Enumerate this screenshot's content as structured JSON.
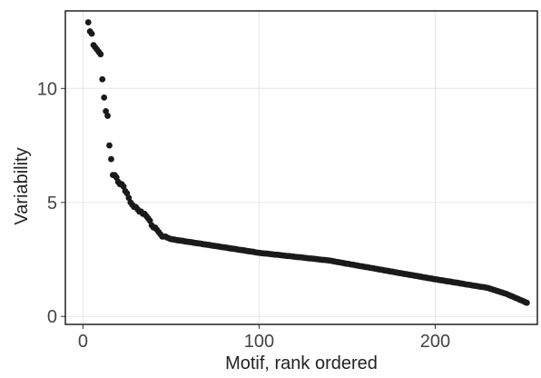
{
  "chart_data": {
    "type": "scatter",
    "xlabel": "Motif, rank ordered",
    "ylabel": "Variability",
    "xlim": [
      -10,
      258
    ],
    "ylim": [
      -0.35,
      13.4
    ],
    "xticks": [
      0,
      100,
      200
    ],
    "yticks": [
      0,
      5,
      10
    ],
    "grid": true,
    "color": "#1a1a1a",
    "x": [
      3,
      4,
      5,
      6,
      7,
      8,
      9,
      10,
      11,
      12,
      13,
      14,
      15,
      16,
      17,
      18,
      19,
      20,
      21,
      22,
      23,
      24,
      25,
      26,
      27,
      28,
      29,
      30,
      31,
      32,
      33,
      34,
      35,
      36,
      37,
      38,
      39,
      40,
      41,
      42,
      43,
      44,
      45,
      46,
      47,
      48,
      49,
      50,
      51,
      52,
      53,
      54,
      55,
      56,
      57,
      58,
      59,
      60,
      61,
      62,
      63,
      64,
      65,
      66,
      67,
      68,
      69,
      70,
      71,
      72,
      73,
      74,
      75,
      76,
      77,
      78,
      79,
      80,
      81,
      82,
      83,
      84,
      85,
      86,
      87,
      88,
      89,
      90,
      91,
      92,
      93,
      94,
      95,
      96,
      97,
      98,
      99,
      100,
      101,
      102,
      103,
      104,
      105,
      106,
      107,
      108,
      109,
      110,
      111,
      112,
      113,
      114,
      115,
      116,
      117,
      118,
      119,
      120,
      121,
      122,
      123,
      124,
      125,
      126,
      127,
      128,
      129,
      130,
      131,
      132,
      133,
      134,
      135,
      136,
      137,
      138,
      139,
      140,
      141,
      142,
      143,
      144,
      145,
      146,
      147,
      148,
      149,
      150,
      151,
      152,
      153,
      154,
      155,
      156,
      157,
      158,
      159,
      160,
      161,
      162,
      163,
      164,
      165,
      166,
      167,
      168,
      169,
      170,
      171,
      172,
      173,
      174,
      175,
      176,
      177,
      178,
      179,
      180,
      181,
      182,
      183,
      184,
      185,
      186,
      187,
      188,
      189,
      190,
      191,
      192,
      193,
      194,
      195,
      196,
      197,
      198,
      199,
      200,
      201,
      202,
      203,
      204,
      205,
      206,
      207,
      208,
      209,
      210,
      211,
      212,
      213,
      214,
      215,
      216,
      217,
      218,
      219,
      220,
      221,
      222,
      223,
      224,
      225,
      226,
      227,
      228,
      229,
      230,
      231,
      232,
      233,
      234,
      235,
      236,
      237,
      238,
      239,
      240,
      241,
      242,
      243,
      244,
      245,
      246,
      247,
      248,
      249,
      250,
      251,
      252
    ],
    "values": [
      12.9,
      12.5,
      12.4,
      11.9,
      11.8,
      11.7,
      11.6,
      11.5,
      10.4,
      9.6,
      9.0,
      8.8,
      7.5,
      6.9,
      6.2,
      6.2,
      6.1,
      5.9,
      5.8,
      5.8,
      5.7,
      5.5,
      5.4,
      5.2,
      5.0,
      4.9,
      4.8,
      4.8,
      4.7,
      4.6,
      4.6,
      4.5,
      4.5,
      4.4,
      4.3,
      4.2,
      4.0,
      3.9,
      3.9,
      3.8,
      3.7,
      3.6,
      3.5,
      3.5,
      3.5,
      3.45,
      3.42,
      3.39,
      3.38,
      3.37,
      3.35,
      3.34,
      3.33,
      3.32,
      3.31,
      3.29,
      3.28,
      3.27,
      3.26,
      3.25,
      3.23,
      3.22,
      3.21,
      3.2,
      3.19,
      3.17,
      3.16,
      3.15,
      3.14,
      3.13,
      3.11,
      3.1,
      3.09,
      3.08,
      3.07,
      3.05,
      3.04,
      3.03,
      3.02,
      3.01,
      2.99,
      2.98,
      2.97,
      2.96,
      2.95,
      2.93,
      2.92,
      2.91,
      2.9,
      2.89,
      2.87,
      2.86,
      2.85,
      2.84,
      2.83,
      2.81,
      2.8,
      2.79,
      2.78,
      2.77,
      2.76,
      2.76,
      2.75,
      2.74,
      2.73,
      2.72,
      2.71,
      2.71,
      2.7,
      2.69,
      2.68,
      2.67,
      2.66,
      2.65,
      2.65,
      2.64,
      2.63,
      2.62,
      2.61,
      2.6,
      2.6,
      2.59,
      2.58,
      2.57,
      2.56,
      2.55,
      2.54,
      2.54,
      2.53,
      2.52,
      2.51,
      2.5,
      2.49,
      2.48,
      2.48,
      2.47,
      2.46,
      2.45,
      2.44,
      2.42,
      2.41,
      2.39,
      2.38,
      2.37,
      2.35,
      2.34,
      2.32,
      2.31,
      2.3,
      2.28,
      2.27,
      2.26,
      2.24,
      2.23,
      2.21,
      2.2,
      2.19,
      2.17,
      2.16,
      2.15,
      2.13,
      2.12,
      2.11,
      2.09,
      2.08,
      2.06,
      2.05,
      2.04,
      2.02,
      2.01,
      2.0,
      1.98,
      1.97,
      1.96,
      1.94,
      1.93,
      1.91,
      1.9,
      1.89,
      1.87,
      1.86,
      1.85,
      1.83,
      1.82,
      1.81,
      1.79,
      1.78,
      1.77,
      1.75,
      1.74,
      1.72,
      1.71,
      1.7,
      1.68,
      1.67,
      1.66,
      1.64,
      1.63,
      1.62,
      1.6,
      1.59,
      1.58,
      1.57,
      1.55,
      1.54,
      1.53,
      1.52,
      1.5,
      1.49,
      1.48,
      1.47,
      1.45,
      1.44,
      1.43,
      1.41,
      1.4,
      1.39,
      1.38,
      1.36,
      1.35,
      1.34,
      1.33,
      1.31,
      1.3,
      1.29,
      1.28,
      1.26,
      1.25,
      1.22,
      1.2,
      1.17,
      1.15,
      1.12,
      1.1,
      1.07,
      1.05,
      1.02,
      1.0,
      0.97,
      0.93,
      0.9,
      0.87,
      0.83,
      0.8,
      0.77,
      0.73,
      0.7,
      0.67,
      0.63,
      0.6
    ]
  }
}
